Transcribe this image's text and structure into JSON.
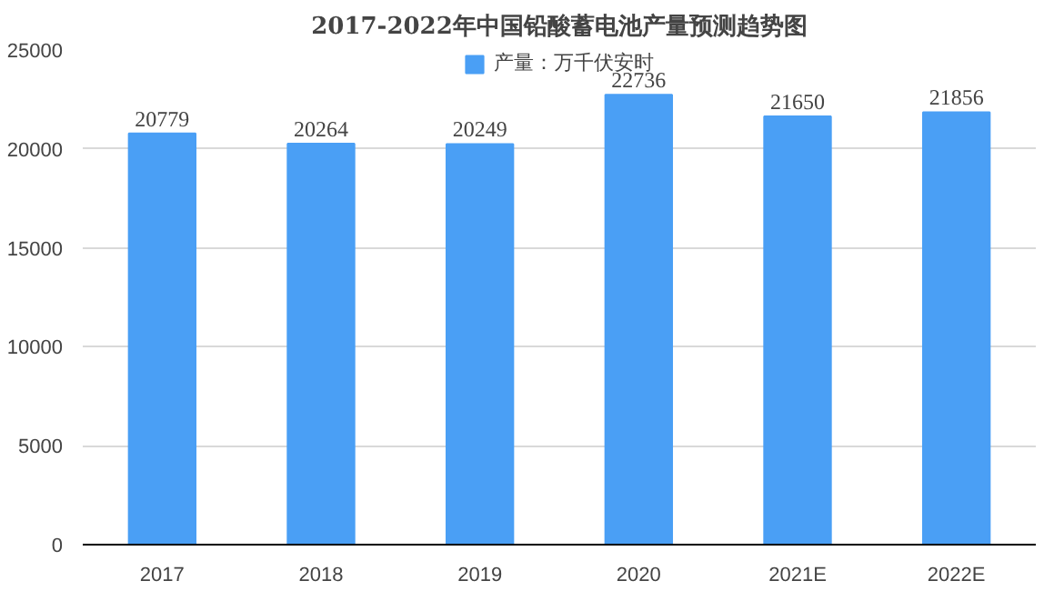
{
  "chart_data": {
    "type": "bar",
    "title": "2017-2022年中国铅酸蓄电池产量预测趋势图",
    "categories": [
      "2017",
      "2018",
      "2019",
      "2020",
      "2021E",
      "2022E"
    ],
    "series": [
      {
        "name": "产量：万千伏安时",
        "color": "#4a9ff5",
        "values": [
          20779,
          20264,
          20249,
          22736,
          21650,
          21856
        ]
      }
    ],
    "ylim": [
      0,
      25000
    ],
    "yticks": [
      0,
      5000,
      10000,
      15000,
      20000,
      25000
    ],
    "grid": "y",
    "legend": "top",
    "data_labels": true
  }
}
